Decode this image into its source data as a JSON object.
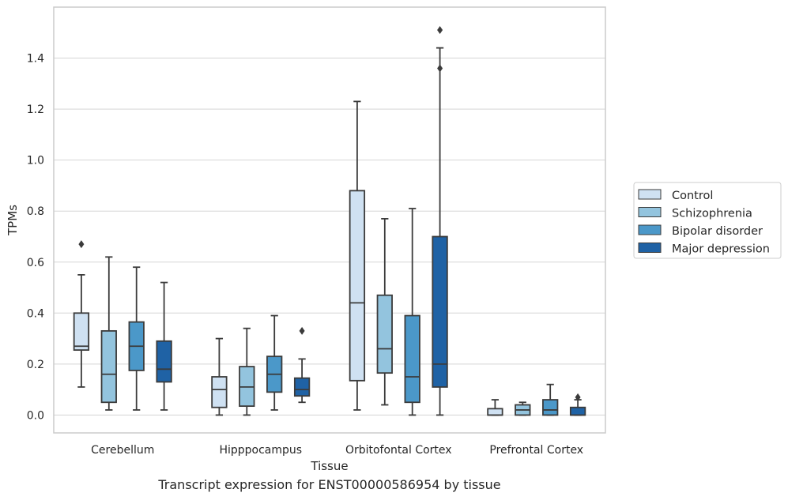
{
  "caption": "Transcript expression for ENST00000586954 by tissue",
  "chart_data": {
    "type": "box",
    "title": "",
    "xlabel": "Tissue",
    "ylabel": "TPMs",
    "ylim": [
      -0.07,
      1.6
    ],
    "yticks": [
      0.0,
      0.2,
      0.4,
      0.6,
      0.8,
      1.0,
      1.2,
      1.4
    ],
    "ytick_labels": [
      "0.0",
      "0.2",
      "0.4",
      "0.6",
      "0.8",
      "1.0",
      "1.2",
      "1.4"
    ],
    "grid": "horizontal",
    "legend_position": "right, outside plot",
    "categories": [
      "Cerebellum",
      "Hipppocampus",
      "Orbitofontal Cortex",
      "Prefrontal Cortex"
    ],
    "series": [
      {
        "name": "Control",
        "color": "#cfe1f2",
        "boxes": [
          {
            "whislo": 0.11,
            "q1": 0.255,
            "med": 0.27,
            "q3": 0.4,
            "whishi": 0.55,
            "fliers": [
              0.67
            ]
          },
          {
            "whislo": 0.0,
            "q1": 0.03,
            "med": 0.1,
            "q3": 0.15,
            "whishi": 0.3,
            "fliers": []
          },
          {
            "whislo": 0.02,
            "q1": 0.135,
            "med": 0.44,
            "q3": 0.88,
            "whishi": 1.23,
            "fliers": []
          },
          {
            "whislo": 0.0,
            "q1": 0.0,
            "med": 0.0,
            "q3": 0.025,
            "whishi": 0.06,
            "fliers": []
          }
        ]
      },
      {
        "name": "Schizophrenia",
        "color": "#93c4de",
        "boxes": [
          {
            "whislo": 0.02,
            "q1": 0.05,
            "med": 0.16,
            "q3": 0.33,
            "whishi": 0.62,
            "fliers": []
          },
          {
            "whislo": 0.0,
            "q1": 0.035,
            "med": 0.11,
            "q3": 0.19,
            "whishi": 0.34,
            "fliers": []
          },
          {
            "whislo": 0.04,
            "q1": 0.165,
            "med": 0.26,
            "q3": 0.47,
            "whishi": 0.77,
            "fliers": []
          },
          {
            "whislo": 0.0,
            "q1": 0.0,
            "med": 0.02,
            "q3": 0.04,
            "whishi": 0.05,
            "fliers": []
          }
        ]
      },
      {
        "name": "Bipolar disorder",
        "color": "#4b98c9",
        "boxes": [
          {
            "whislo": 0.02,
            "q1": 0.175,
            "med": 0.27,
            "q3": 0.365,
            "whishi": 0.58,
            "fliers": []
          },
          {
            "whislo": 0.02,
            "q1": 0.09,
            "med": 0.16,
            "q3": 0.23,
            "whishi": 0.39,
            "fliers": []
          },
          {
            "whislo": 0.0,
            "q1": 0.05,
            "med": 0.15,
            "q3": 0.39,
            "whishi": 0.81,
            "fliers": []
          },
          {
            "whislo": 0.0,
            "q1": 0.0,
            "med": 0.02,
            "q3": 0.06,
            "whishi": 0.12,
            "fliers": []
          }
        ]
      },
      {
        "name": "Major depression",
        "color": "#1f62a5",
        "boxes": [
          {
            "whislo": 0.02,
            "q1": 0.13,
            "med": 0.18,
            "q3": 0.29,
            "whishi": 0.52,
            "fliers": []
          },
          {
            "whislo": 0.05,
            "q1": 0.075,
            "med": 0.1,
            "q3": 0.145,
            "whishi": 0.22,
            "fliers": [
              0.33
            ]
          },
          {
            "whislo": 0.0,
            "q1": 0.11,
            "med": 0.2,
            "q3": 0.7,
            "whishi": 1.44,
            "fliers": [
              1.36,
              1.51
            ]
          },
          {
            "whislo": 0.0,
            "q1": 0.0,
            "med": 0.0,
            "q3": 0.03,
            "whishi": 0.06,
            "fliers": [
              0.07
            ]
          }
        ]
      }
    ]
  }
}
